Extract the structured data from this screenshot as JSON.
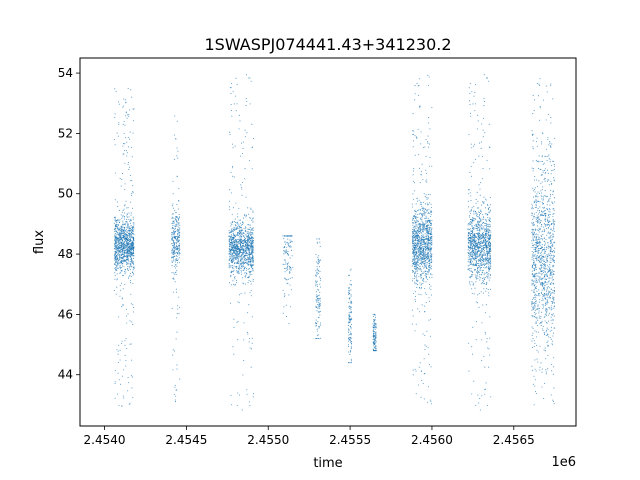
{
  "chart_data": {
    "type": "scatter",
    "title": "1SWASPJ074441.43+341230.2",
    "xlabel": "time",
    "ylabel": "flux",
    "x_offset_label": "1e6",
    "xlim": [
      2.45385,
      2.45688
    ],
    "ylim": [
      42.3,
      54.5
    ],
    "x_ticks": [
      2.454,
      2.4545,
      2.455,
      2.4555,
      2.456,
      2.4565
    ],
    "x_tick_labels": [
      "2.4540",
      "2.4545",
      "2.4550",
      "2.4555",
      "2.4560",
      "2.4565"
    ],
    "y_ticks": [
      44,
      46,
      48,
      50,
      52,
      54
    ],
    "y_tick_labels": [
      "44",
      "46",
      "48",
      "50",
      "52",
      "54"
    ],
    "grid": false,
    "point_color": "#1f77b4",
    "clusters": [
      {
        "x_start": 2.45406,
        "x_end": 2.45418,
        "core_center": 48.3,
        "core_spread": 0.45,
        "min": 42.9,
        "max": 53.5,
        "density": "high"
      },
      {
        "x_start": 2.45441,
        "x_end": 2.45446,
        "core_center": 48.4,
        "core_spread": 0.5,
        "min": 43.0,
        "max": 53.0,
        "density": "medium"
      },
      {
        "x_start": 2.45476,
        "x_end": 2.45491,
        "core_center": 48.2,
        "core_spread": 0.45,
        "min": 42.8,
        "max": 54.0,
        "density": "high"
      },
      {
        "x_start": 2.45509,
        "x_end": 2.45515,
        "core_center": 48.0,
        "core_spread": 0.7,
        "min": 45.3,
        "max": 48.6,
        "density": "low"
      },
      {
        "x_start": 2.45529,
        "x_end": 2.45532,
        "core_center": 46.5,
        "core_spread": 0.9,
        "min": 45.2,
        "max": 48.5,
        "density": "low"
      },
      {
        "x_start": 2.45549,
        "x_end": 2.45551,
        "core_center": 45.7,
        "core_spread": 0.8,
        "min": 44.4,
        "max": 47.5,
        "density": "low"
      },
      {
        "x_start": 2.45564,
        "x_end": 2.45566,
        "core_center": 45.2,
        "core_spread": 0.4,
        "min": 44.8,
        "max": 46.0,
        "density": "low"
      },
      {
        "x_start": 2.45588,
        "x_end": 2.456,
        "core_center": 48.3,
        "core_spread": 0.6,
        "min": 42.8,
        "max": 54.0,
        "density": "high"
      },
      {
        "x_start": 2.45622,
        "x_end": 2.45636,
        "core_center": 48.3,
        "core_spread": 0.6,
        "min": 42.8,
        "max": 54.0,
        "density": "high"
      },
      {
        "x_start": 2.45661,
        "x_end": 2.45675,
        "core_center": 47.7,
        "core_spread": 1.5,
        "min": 42.8,
        "max": 54.0,
        "density": "high"
      }
    ]
  }
}
